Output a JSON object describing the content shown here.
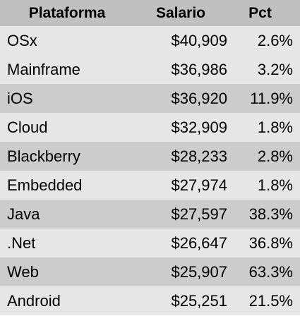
{
  "table": {
    "headers": {
      "plataforma": "Plataforma",
      "salario": "Salario",
      "pct": "Pct"
    },
    "rows": [
      {
        "plataforma": "OSx",
        "salario": "$40,909",
        "pct": "2.6%"
      },
      {
        "plataforma": "Mainframe",
        "salario": "$36,986",
        "pct": "3.2%"
      },
      {
        "plataforma": "iOS",
        "salario": "$36,920",
        "pct": "11.9%"
      },
      {
        "plataforma": "Cloud",
        "salario": "$32,909",
        "pct": "1.8%"
      },
      {
        "plataforma": "Blackberry",
        "salario": "$28,233",
        "pct": "2.8%"
      },
      {
        "plataforma": "Embedded",
        "salario": "$27,974",
        "pct": "1.8%"
      },
      {
        "plataforma": "Java",
        "salario": "$27,597",
        "pct": "38.3%"
      },
      {
        "plataforma": ".Net",
        "salario": "$26,647",
        "pct": "36.8%"
      },
      {
        "plataforma": "Web",
        "salario": "$25,907",
        "pct": "63.3%"
      },
      {
        "plataforma": "Android",
        "salario": "$25,251",
        "pct": "21.5%"
      }
    ]
  },
  "colors": {
    "header_bg": "#c0c0c0",
    "row_light": "#e6e6e6",
    "row_dark": "#cccccc"
  }
}
